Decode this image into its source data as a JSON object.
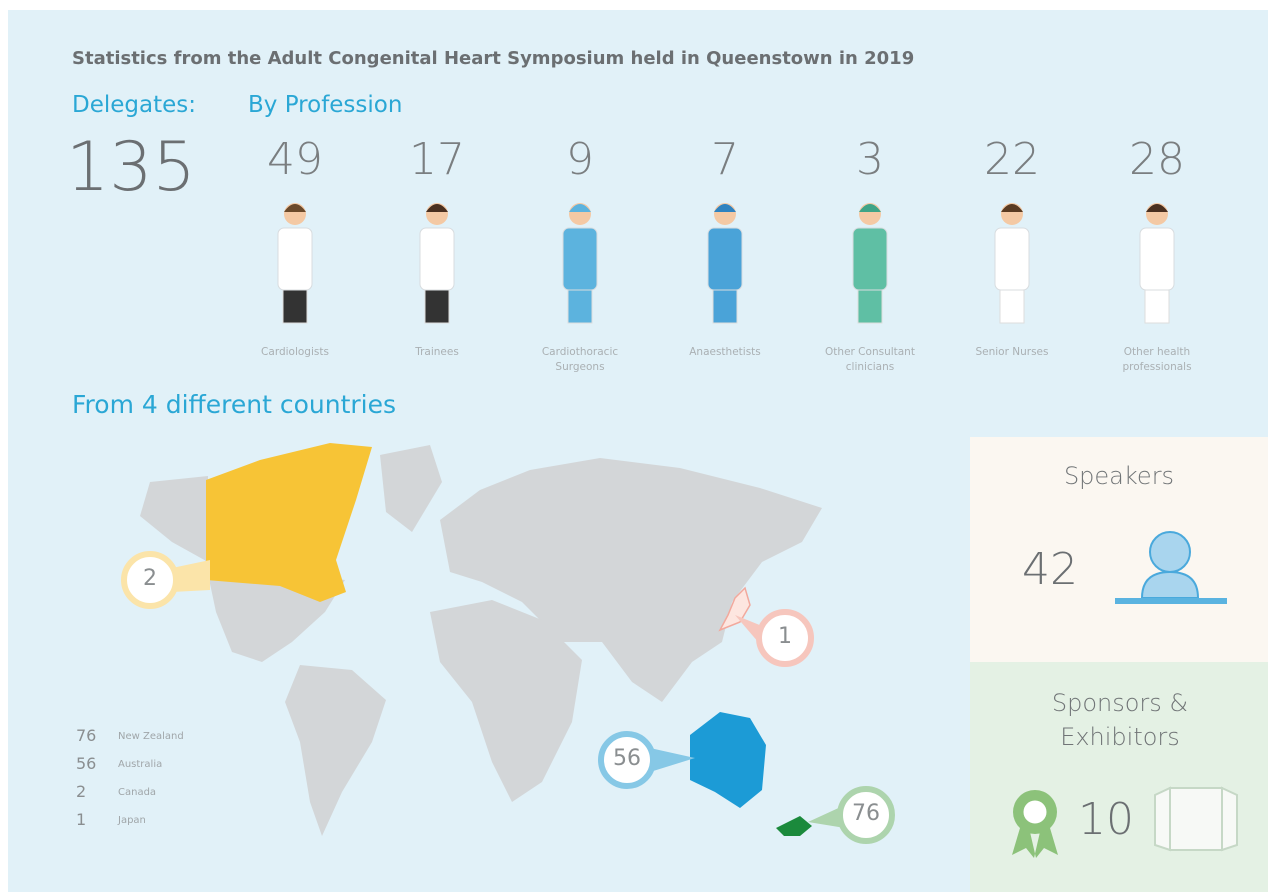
{
  "title": "Statistics from the Adult Congenital Heart Symposium held in Queenstown in 2019",
  "delegates": {
    "label": "Delegates:",
    "total": 135
  },
  "by_profession": {
    "label": "By Profession",
    "items": [
      {
        "count": 49,
        "label": "Cardiologists"
      },
      {
        "count": 17,
        "label": "Trainees"
      },
      {
        "count": 9,
        "label": "Cardiothoracic Surgeons"
      },
      {
        "count": 7,
        "label": "Anaesthetists"
      },
      {
        "count": 3,
        "label": "Other Consultant clinicians"
      },
      {
        "count": 22,
        "label": "Senior Nurses"
      },
      {
        "count": 28,
        "label": "Other health professionals"
      }
    ]
  },
  "countries": {
    "heading": "From 4 different countries",
    "items": [
      {
        "count": 76,
        "name": "New Zealand"
      },
      {
        "count": 56,
        "name": "Australia"
      },
      {
        "count": 2,
        "name": "Canada"
      },
      {
        "count": 1,
        "name": "Japan"
      }
    ]
  },
  "speakers": {
    "label": "Speakers",
    "count": 42
  },
  "sponsors": {
    "label": "Sponsors & Exhibitors",
    "count": 10
  }
}
